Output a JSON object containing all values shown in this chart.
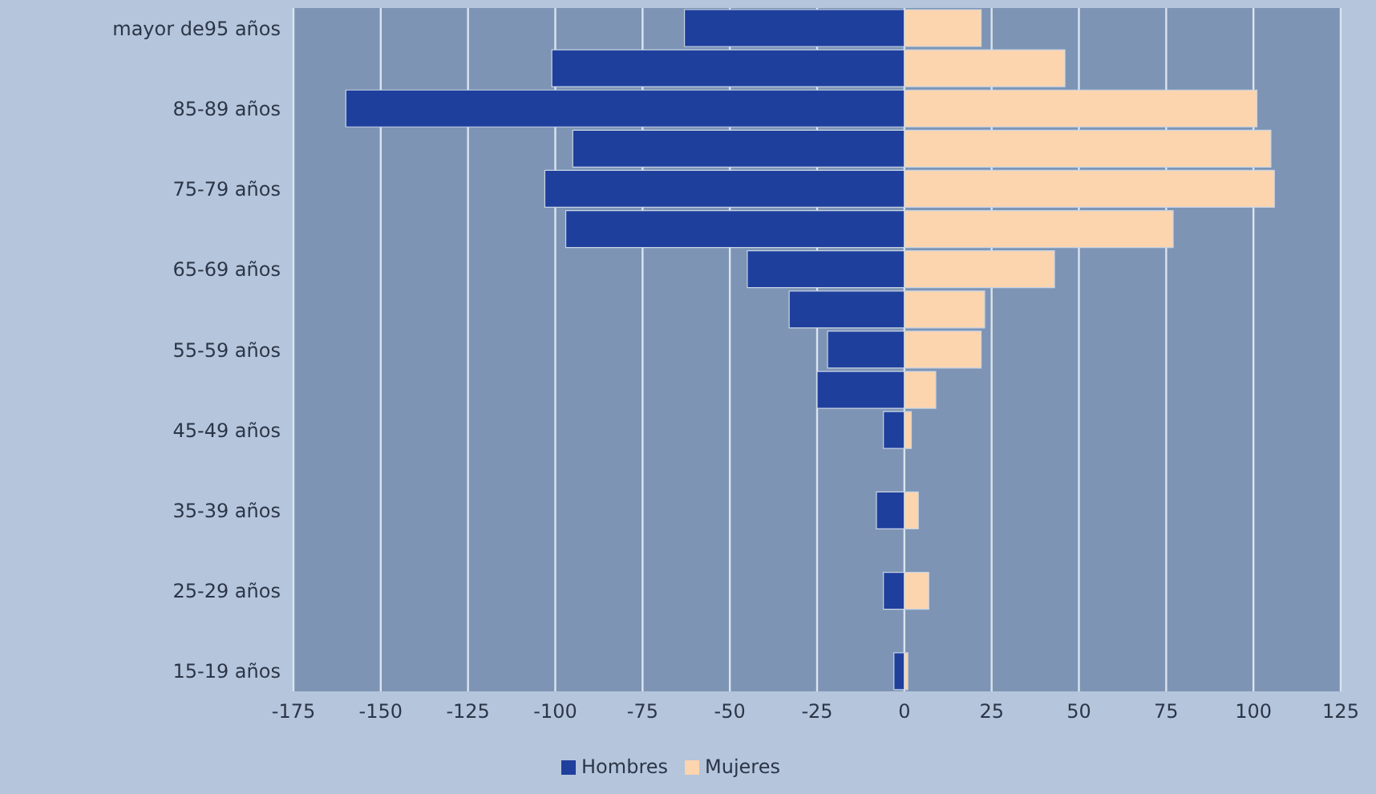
{
  "chart_data": {
    "type": "bar",
    "orientation": "horizontal",
    "stacked": true,
    "categories": [
      "mayor de95 años",
      null,
      "85-89 años",
      null,
      "75-79 años",
      null,
      "65-69 años",
      null,
      "55-59 años",
      null,
      "45-49 años",
      null,
      "35-39 años",
      null,
      "25-29 años",
      null,
      "15-19 años"
    ],
    "series": [
      {
        "name": "Hombres",
        "color": "#1f3f9c",
        "values": [
          -63,
          -101,
          -160,
          -95,
          -103,
          -97,
          -45,
          -33,
          -22,
          -25,
          -6,
          0,
          -8,
          0,
          -6,
          0,
          -3
        ]
      },
      {
        "name": "Mujeres",
        "color": "#fcd5ae",
        "values": [
          22,
          46,
          101,
          105,
          106,
          77,
          43,
          23,
          22,
          9,
          2,
          0,
          4,
          0,
          7,
          0,
          1
        ]
      }
    ],
    "xlim": [
      -175,
      125
    ],
    "xticks": [
      -175,
      -150,
      -125,
      -100,
      -75,
      -50,
      -25,
      0,
      25,
      50,
      75,
      100,
      125
    ],
    "grid": "x",
    "legend": "bottom"
  }
}
